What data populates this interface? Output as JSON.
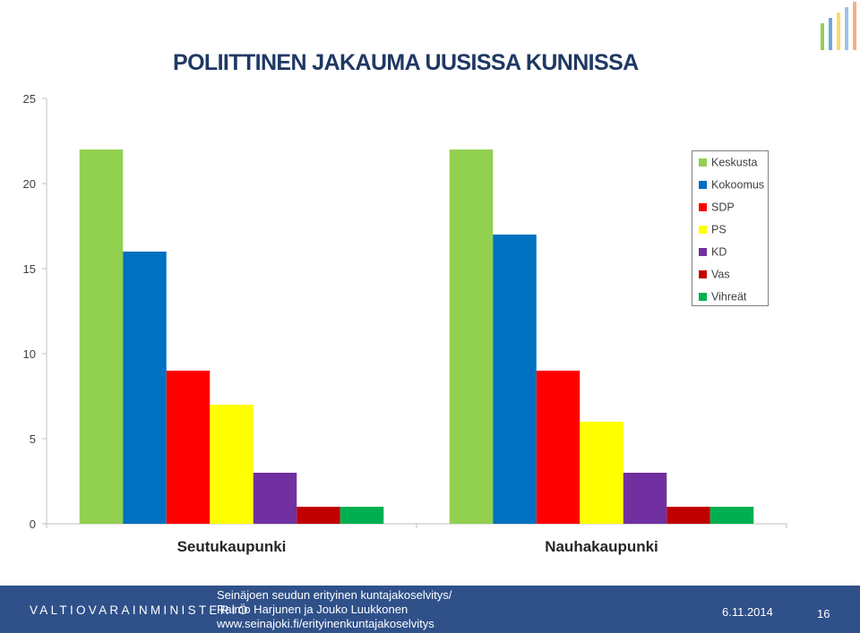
{
  "title": "POLIITTINEN JAKAUMA UUSISSA KUNNISSA",
  "colors": {
    "Keskusta": "#92d050",
    "Kokoomus": "#0070c0",
    "SDP": "#ff0000",
    "PS": "#ffff00",
    "KD": "#7030a0",
    "Vas": "#c00000",
    "Vihreät": "#00b050"
  },
  "chart_data": {
    "type": "bar",
    "categories": [
      "Seutukaupunki",
      "Nauhakaupunki"
    ],
    "series": [
      {
        "name": "Keskusta",
        "values": [
          22,
          22
        ]
      },
      {
        "name": "Kokoomus",
        "values": [
          16,
          17
        ]
      },
      {
        "name": "SDP",
        "values": [
          9,
          9
        ]
      },
      {
        "name": "PS",
        "values": [
          7,
          6
        ]
      },
      {
        "name": "KD",
        "values": [
          3,
          3
        ]
      },
      {
        "name": "Vas",
        "values": [
          1,
          1
        ]
      },
      {
        "name": "Vihreät",
        "values": [
          1,
          1
        ]
      }
    ],
    "ylim": [
      0,
      25
    ],
    "yticks": [
      "0",
      "5",
      "10",
      "15",
      "20",
      "25"
    ],
    "legend_position": "right",
    "grid": false
  },
  "footer": {
    "ministry": "VALTIOVARAINMINISTERIÖ",
    "source_line1": "Seinäjoen seudun erityinen kuntajakoselvitys/",
    "source_line2": "Raimo Harjunen ja Jouko Luukkonen",
    "source_line3": "www.seinajoki.fi/erityinenkuntajakoselvitys",
    "date": "6.11.2014",
    "page": "16"
  }
}
